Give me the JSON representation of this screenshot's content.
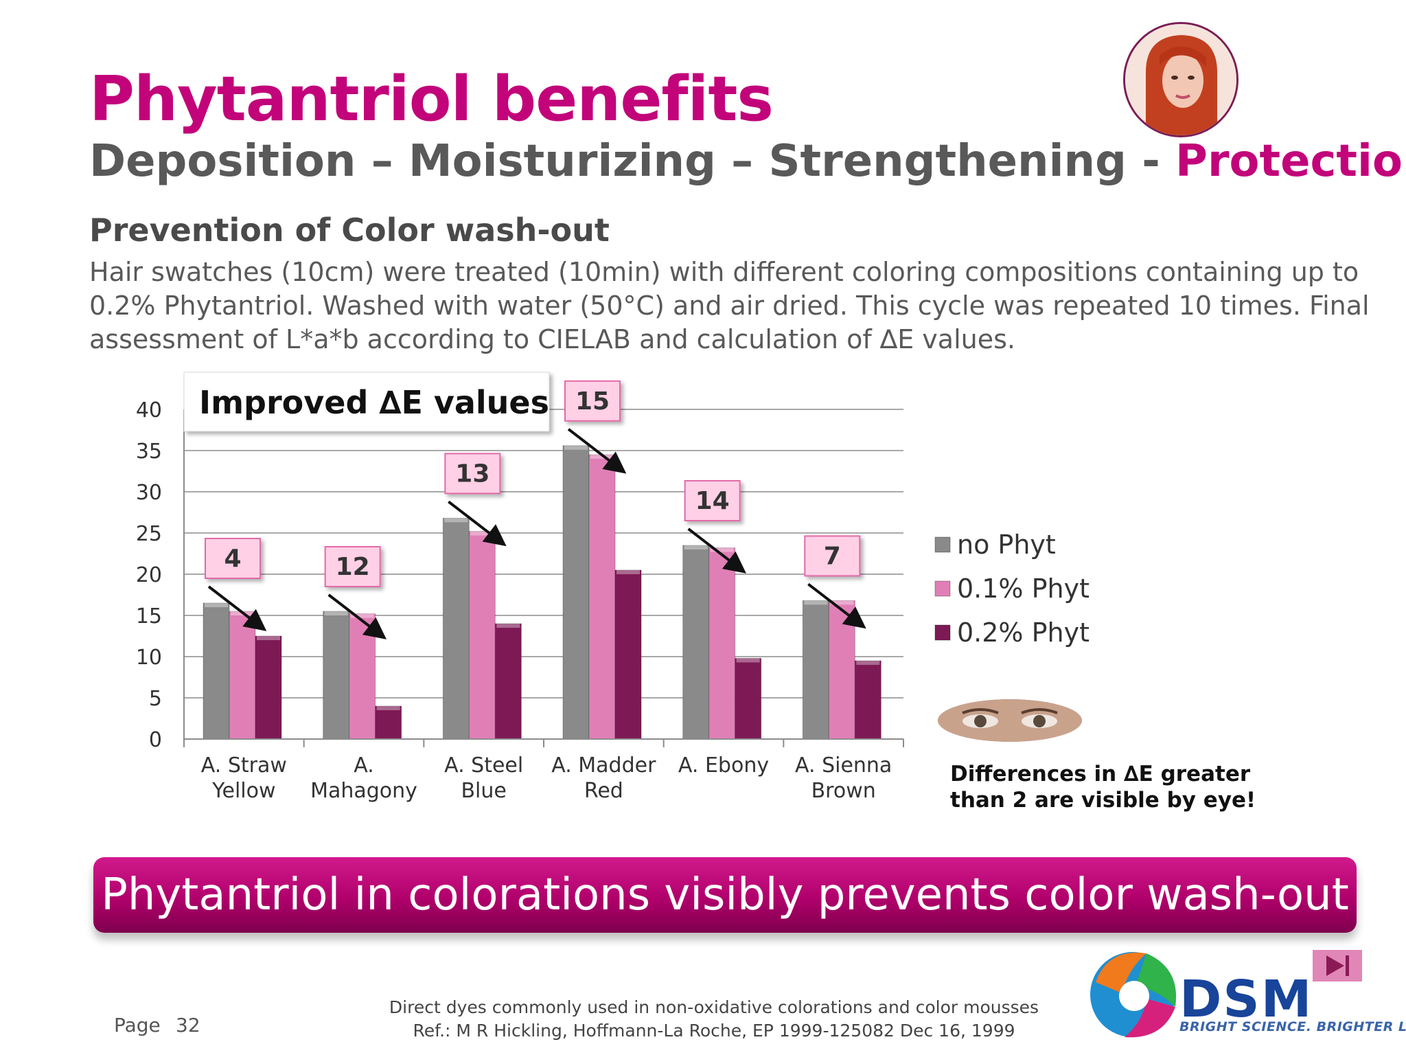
{
  "header": {
    "title": "Phytantriol benefits",
    "subtitle_main": "Deposition – Moisturizing – Strengthening -",
    "subtitle_accent": "Protection"
  },
  "section": {
    "heading": "Prevention of Color wash-out",
    "description": "Hair swatches (10cm) were treated (10min) with different coloring compositions containing up to 0.2% Phytantriol. Washed with water (50°C) and air dried. This cycle was repeated 10 times. Final assessment of L*a*b according to CIELAB and calculation of ∆E values."
  },
  "colors": {
    "accent": "#c2037a",
    "no_phyt": "#8a8a8a",
    "phyt_01": "#e07fb6",
    "phyt_02": "#7d1a55",
    "callout_fill": "#ffd0e6",
    "callout_border": "#e36aa8"
  },
  "chart_data": {
    "type": "bar",
    "title": "Improved ∆E values",
    "ylim": [
      0,
      40
    ],
    "yticks": [
      0,
      5,
      10,
      15,
      20,
      25,
      30,
      35,
      40
    ],
    "grid": true,
    "legend_position": "right",
    "categories": [
      [
        "A. Straw",
        "Yellow"
      ],
      [
        "A.",
        "Mahagony"
      ],
      [
        "A. Steel",
        "Blue"
      ],
      [
        "A. Madder",
        "Red"
      ],
      [
        "A. Ebony"
      ],
      [
        "A. Sienna",
        "Brown"
      ]
    ],
    "series": [
      {
        "name": "no Phyt",
        "values": [
          16.5,
          15.5,
          26.8,
          35.6,
          23.5,
          16.8
        ]
      },
      {
        "name": "0.1% Phyt",
        "values": [
          15.5,
          15.2,
          25.2,
          34.5,
          23.2,
          16.8
        ]
      },
      {
        "name": "0.2% Phyt",
        "values": [
          12.5,
          4.0,
          14.0,
          20.5,
          9.8,
          9.5
        ]
      }
    ],
    "annotations": [
      "4",
      "12",
      "13",
      "15",
      "14",
      "7"
    ]
  },
  "note": {
    "line1": "Differences in ∆E greater",
    "line2": "than 2 are visible by eye!"
  },
  "banner": {
    "text": "Phytantriol in colorations visibly prevents color wash-out"
  },
  "footer": {
    "page_label": "Page",
    "page_number": "32",
    "ref_line1": "Direct dyes commonly used in non-oxidative colorations and color mousses",
    "ref_line2": "Ref.: M R Hickling, Hoffmann-La Roche, EP 1999-125082 Dec 16, 1999",
    "brand": "DSM",
    "tagline": "BRIGHT SCIENCE. BRIGHTER LIVING."
  }
}
